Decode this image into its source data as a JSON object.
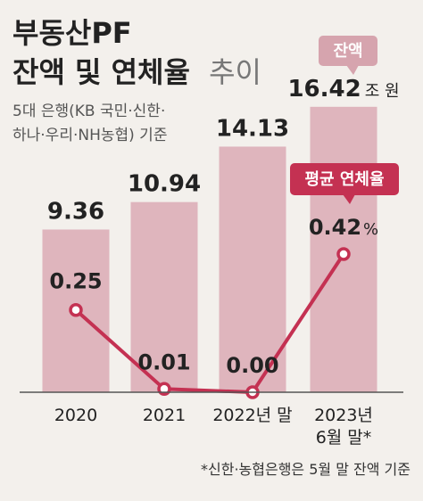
{
  "header": {
    "title_line1": "부동산PF",
    "title_line2": "잔액 및 연체율",
    "title_line2_light": "추이",
    "subtitle_line1": "5대 은행(KB 국민·신한·",
    "subtitle_line2": "하나·우리·NH농협) 기준"
  },
  "chart_data": {
    "type": "bar",
    "categories": [
      [
        "2020"
      ],
      [
        "2021"
      ],
      [
        "2022년 말"
      ],
      [
        "2023년",
        "6월 말*"
      ]
    ],
    "series": [
      {
        "name": "잔액",
        "type": "bar",
        "values": [
          9.36,
          10.94,
          14.13,
          16.42
        ],
        "labels": [
          "9.36",
          "10.94",
          "14.13",
          "16.42"
        ],
        "unit": "조 원",
        "unit_label_index": 3,
        "color": "#dfb5bd"
      },
      {
        "name": "평균 연체율",
        "type": "line",
        "values": [
          0.25,
          0.01,
          0.0,
          0.42
        ],
        "labels": [
          "0.25",
          "0.01",
          "0.00",
          "0.42"
        ],
        "unit": "%",
        "unit_label_index": 3,
        "color": "#c43152"
      }
    ],
    "bubble_colors": {
      "balance": "#d6a4ae",
      "rate": "#c43152"
    },
    "footnote": "*신한·농협은행은 5월 말 잔액 기준"
  }
}
